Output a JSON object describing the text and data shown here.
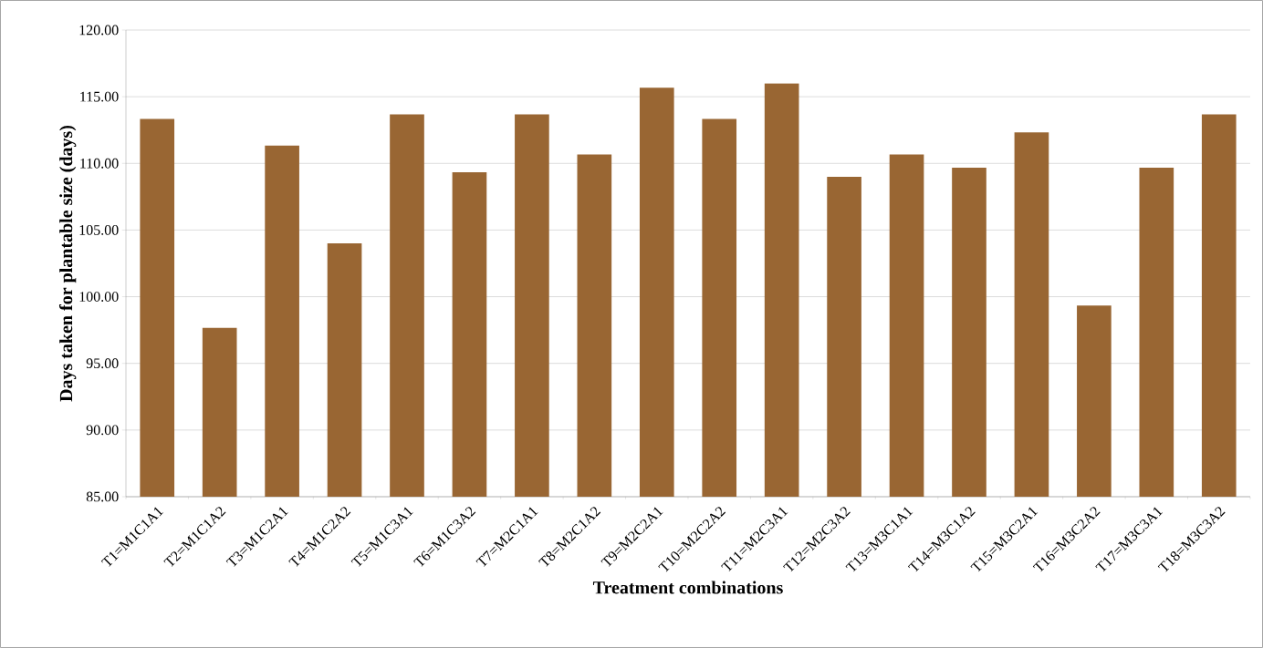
{
  "chart_data": {
    "type": "bar",
    "xlabel": "Treatment combinations",
    "ylabel": "Days taken for plantable size (days)",
    "categories": [
      "T1=M1C1A1",
      "T2=M1C1A2",
      "T3=M1C2A1",
      "T4=M1C2A2",
      "T5=M1C3A1",
      "T6=M1C3A2",
      "T7=M2C1A1",
      "T8=M2C1A2",
      "T9=M2C2A1",
      "T10=M2C2A2",
      "T11=M2C3A1",
      "T12=M2C3A2",
      "T13=M3C1A1",
      "T14=M3C1A2",
      "T15=M3C2A1",
      "T16=M3C2A2",
      "T17=M3C3A1",
      "T18=M3C3A2"
    ],
    "values": [
      113.33,
      97.67,
      111.33,
      104.0,
      113.67,
      109.33,
      113.67,
      110.67,
      115.67,
      113.33,
      116.0,
      109.0,
      110.67,
      109.67,
      112.33,
      99.33,
      109.67,
      113.67
    ],
    "color": "#996633",
    "ylim": [
      85,
      120
    ],
    "yticks": [
      {
        "value": 85,
        "label": "85.00"
      },
      {
        "value": 90,
        "label": "90.00"
      },
      {
        "value": 95,
        "label": "95.00"
      },
      {
        "value": 100,
        "label": "100.00"
      },
      {
        "value": 105,
        "label": "105.00"
      },
      {
        "value": 110,
        "label": "110.00"
      },
      {
        "value": 115,
        "label": "115.00"
      },
      {
        "value": 120,
        "label": "120.00"
      }
    ],
    "grid": "y"
  }
}
